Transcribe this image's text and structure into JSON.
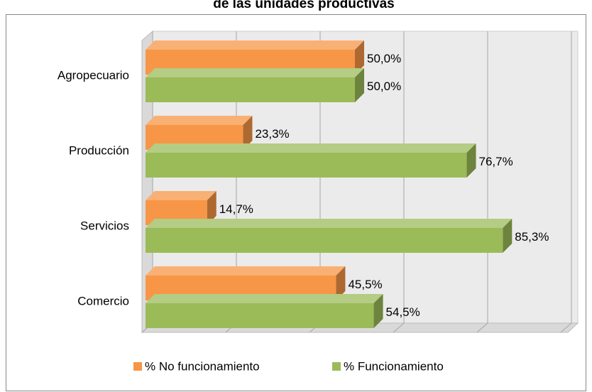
{
  "chart_data": {
    "type": "bar3d-horizontal",
    "title": "de las unidades productivas",
    "categories": [
      "Agropecuario",
      "Producción",
      "Servicios",
      "Comercio"
    ],
    "series": [
      {
        "name": "% No funcionamiento",
        "color": "#F79646",
        "values": [
          50.0,
          23.3,
          14.7,
          45.5
        ],
        "value_labels": [
          "50,0%",
          "23,3%",
          "14,7%",
          "45,5%"
        ]
      },
      {
        "name": "% Funcionamiento",
        "color": "#9BBB59",
        "values": [
          50.0,
          76.7,
          85.3,
          54.5
        ],
        "value_labels": [
          "50,0%",
          "76,7%",
          "85,3%",
          "54,5%"
        ]
      }
    ],
    "xlim": [
      0,
      100
    ],
    "xticks": [
      0,
      20,
      40,
      60,
      80,
      100
    ],
    "grid": true,
    "legend": "bottom"
  }
}
